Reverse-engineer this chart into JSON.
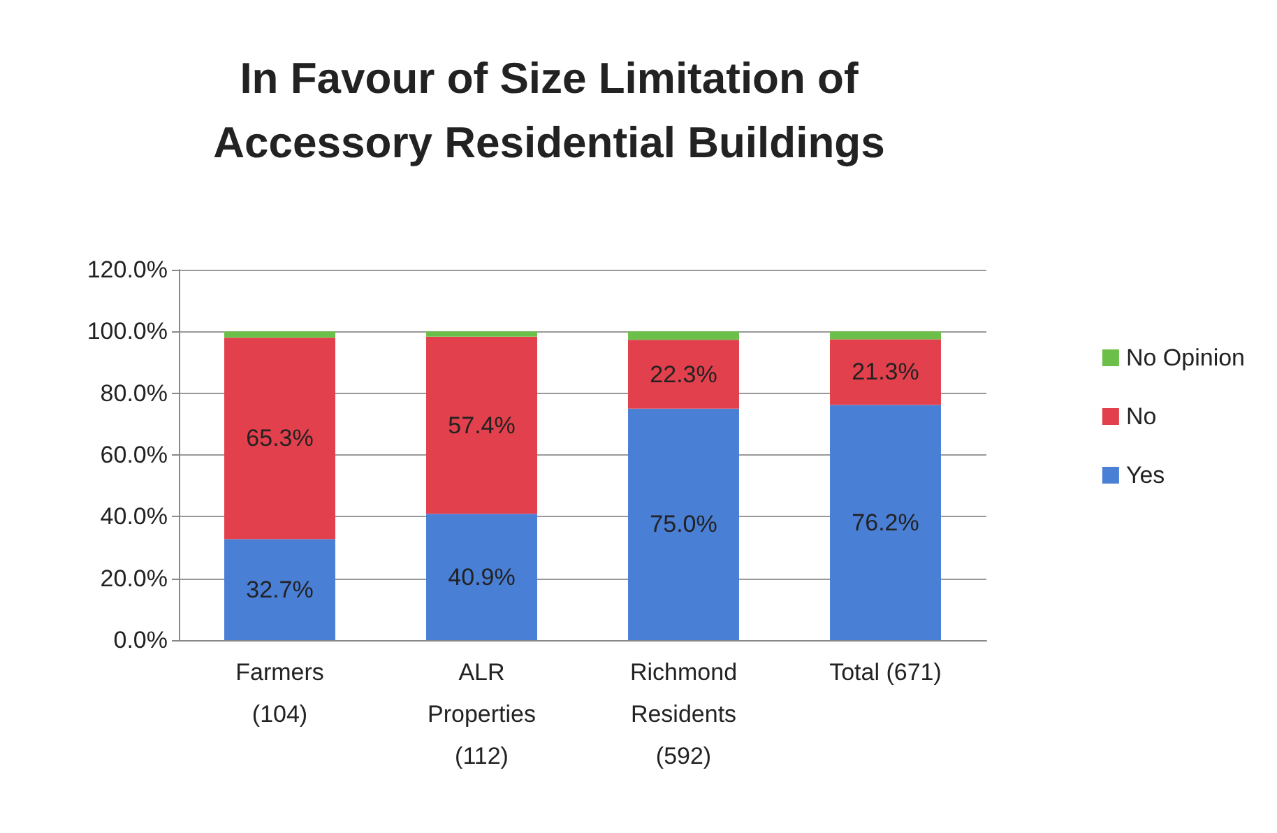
{
  "chart_data": {
    "type": "bar",
    "title": "In Favour of Size Limitation of\nAccessory Residential Buildings",
    "categories": [
      "Farmers\n(104)",
      "ALR\nProperties\n(112)",
      "Richmond\nResidents\n(592)",
      "Total (671)"
    ],
    "stacked": true,
    "series": [
      {
        "name": "Yes",
        "color": "#4a7fd6",
        "values": [
          32.7,
          40.9,
          75.0,
          76.2
        ],
        "value_labels": [
          "32.7%",
          "40.9%",
          "75.0%",
          "76.2%"
        ]
      },
      {
        "name": "No",
        "color": "#e2404c",
        "values": [
          65.3,
          57.4,
          22.3,
          21.3
        ],
        "value_labels": [
          "65.3%",
          "57.4%",
          "22.3%",
          "21.3%"
        ]
      },
      {
        "name": "No Opinion",
        "color": "#6cc04a",
        "values": [
          2.0,
          1.7,
          2.7,
          2.5
        ]
      }
    ],
    "ylim": [
      0,
      120
    ],
    "yticks": [
      {
        "value": 0,
        "label": "0.0%"
      },
      {
        "value": 20,
        "label": "20.0%"
      },
      {
        "value": 40,
        "label": "40.0%"
      },
      {
        "value": 60,
        "label": "60.0%"
      },
      {
        "value": 80,
        "label": "80.0%"
      },
      {
        "value": 100,
        "label": "100.0%"
      },
      {
        "value": 120,
        "label": "120.0%"
      }
    ],
    "grid": "y",
    "legend": "right"
  }
}
